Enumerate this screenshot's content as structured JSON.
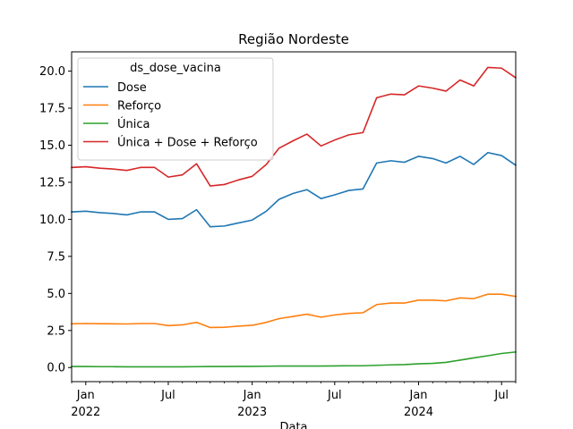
{
  "chart_data": {
    "type": "line",
    "title": "Região Nordeste",
    "xlabel": "Data",
    "ylabel": "",
    "x": [
      "2021-12",
      "2022-01",
      "2022-02",
      "2022-03",
      "2022-04",
      "2022-05",
      "2022-06",
      "2022-07",
      "2022-08",
      "2022-09",
      "2022-10",
      "2022-11",
      "2022-12",
      "2023-01",
      "2023-02",
      "2023-03",
      "2023-04",
      "2023-05",
      "2023-06",
      "2023-07",
      "2023-08",
      "2023-09",
      "2023-10",
      "2023-11",
      "2023-12",
      "2024-01",
      "2024-02",
      "2024-03",
      "2024-04",
      "2024-05",
      "2024-06",
      "2024-07",
      "2024-08"
    ],
    "xlim": [
      "2021-12-01",
      "2024-08-01"
    ],
    "ylim": [
      -0.95,
      21.3
    ],
    "yticks": [
      0.0,
      2.5,
      5.0,
      7.5,
      10.0,
      12.5,
      15.0,
      17.5,
      20.0
    ],
    "ytick_labels": [
      "0.0",
      "2.5",
      "5.0",
      "7.5",
      "10.0",
      "12.5",
      "15.0",
      "17.5",
      "20.0"
    ],
    "xticks": [
      {
        "date": "2022-01-01",
        "label": "Jan",
        "year": "2022"
      },
      {
        "date": "2022-07-01",
        "label": "Jul",
        "year": ""
      },
      {
        "date": "2023-01-01",
        "label": "Jan",
        "year": "2023"
      },
      {
        "date": "2023-07-01",
        "label": "Jul",
        "year": ""
      },
      {
        "date": "2024-01-01",
        "label": "Jan",
        "year": "2024"
      },
      {
        "date": "2024-07-01",
        "label": "Jul",
        "year": ""
      }
    ],
    "legend": {
      "title": "ds_dose_vacina",
      "position": "top-left"
    },
    "series": [
      {
        "name": "Dose",
        "color": "#1f77b4",
        "values": [
          10.5,
          10.55,
          10.45,
          10.4,
          10.3,
          10.5,
          10.5,
          10.0,
          10.05,
          10.65,
          9.5,
          9.55,
          9.75,
          9.95,
          10.55,
          11.35,
          11.75,
          12.0,
          11.4,
          11.65,
          11.95,
          12.05,
          13.8,
          13.95,
          13.85,
          14.25,
          14.1,
          13.8,
          14.25,
          13.7,
          14.5,
          14.3,
          13.65
        ]
      },
      {
        "name": "Reforço",
        "color": "#ff7f0e",
        "values": [
          2.95,
          2.97,
          2.96,
          2.95,
          2.94,
          2.97,
          2.97,
          2.83,
          2.88,
          3.05,
          2.7,
          2.72,
          2.79,
          2.85,
          3.05,
          3.3,
          3.45,
          3.6,
          3.4,
          3.55,
          3.65,
          3.7,
          4.25,
          4.35,
          4.35,
          4.55,
          4.55,
          4.5,
          4.7,
          4.65,
          4.95,
          4.95,
          4.8
        ]
      },
      {
        "name": "Única",
        "color": "#2ca02c",
        "values": [
          0.07,
          0.07,
          0.06,
          0.06,
          0.05,
          0.05,
          0.05,
          0.05,
          0.05,
          0.06,
          0.07,
          0.07,
          0.08,
          0.08,
          0.09,
          0.1,
          0.1,
          0.1,
          0.1,
          0.11,
          0.12,
          0.12,
          0.15,
          0.18,
          0.2,
          0.25,
          0.28,
          0.35,
          0.5,
          0.65,
          0.8,
          0.95,
          1.05
        ]
      },
      {
        "name": "Única + Dose + Reforço",
        "color": "#d62728",
        "values": [
          13.5,
          13.55,
          13.45,
          13.4,
          13.3,
          13.5,
          13.5,
          12.85,
          13.0,
          13.75,
          12.25,
          12.35,
          12.65,
          12.9,
          13.7,
          14.8,
          15.3,
          15.75,
          14.95,
          15.35,
          15.7,
          15.85,
          18.2,
          18.45,
          18.4,
          19.0,
          18.85,
          18.65,
          19.4,
          19.0,
          20.25,
          20.2,
          19.55
        ]
      }
    ]
  }
}
